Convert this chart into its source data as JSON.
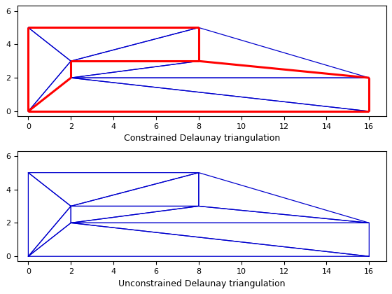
{
  "constrained_triangles": [
    [
      [
        0,
        5
      ],
      [
        2,
        3
      ],
      [
        0,
        0
      ]
    ],
    [
      [
        0,
        5
      ],
      [
        8,
        5
      ],
      [
        2,
        3
      ]
    ],
    [
      [
        2,
        3
      ],
      [
        8,
        5
      ],
      [
        8,
        3
      ]
    ],
    [
      [
        0,
        0
      ],
      [
        2,
        3
      ],
      [
        2,
        2
      ]
    ],
    [
      [
        2,
        2
      ],
      [
        2,
        3
      ],
      [
        8,
        3
      ]
    ],
    [
      [
        2,
        2
      ],
      [
        8,
        3
      ],
      [
        16,
        2
      ]
    ],
    [
      [
        0,
        0
      ],
      [
        2,
        2
      ],
      [
        16,
        0
      ]
    ],
    [
      [
        16,
        0
      ],
      [
        2,
        2
      ],
      [
        16,
        2
      ]
    ],
    [
      [
        8,
        3
      ],
      [
        16,
        2
      ],
      [
        8,
        5
      ]
    ]
  ],
  "unconstrained_triangles": [
    [
      [
        0,
        0
      ],
      [
        0,
        5
      ],
      [
        2,
        3
      ]
    ],
    [
      [
        0,
        0
      ],
      [
        2,
        3
      ],
      [
        2,
        2
      ]
    ],
    [
      [
        0,
        5
      ],
      [
        8,
        5
      ],
      [
        2,
        3
      ]
    ],
    [
      [
        2,
        3
      ],
      [
        8,
        5
      ],
      [
        8,
        3
      ]
    ],
    [
      [
        2,
        2
      ],
      [
        2,
        3
      ],
      [
        8,
        3
      ]
    ],
    [
      [
        0,
        0
      ],
      [
        2,
        2
      ],
      [
        16,
        0
      ]
    ],
    [
      [
        2,
        2
      ],
      [
        8,
        3
      ],
      [
        16,
        2
      ]
    ],
    [
      [
        16,
        0
      ],
      [
        2,
        2
      ],
      [
        16,
        2
      ]
    ],
    [
      [
        8,
        3
      ],
      [
        8,
        5
      ],
      [
        16,
        2
      ]
    ]
  ],
  "red_segments": [
    [
      [
        0,
        0
      ],
      [
        0,
        5
      ]
    ],
    [
      [
        0,
        5
      ],
      [
        8,
        5
      ]
    ],
    [
      [
        8,
        5
      ],
      [
        8,
        3
      ]
    ],
    [
      [
        8,
        3
      ],
      [
        2,
        3
      ]
    ],
    [
      [
        2,
        3
      ],
      [
        2,
        2
      ]
    ],
    [
      [
        2,
        2
      ],
      [
        0,
        0
      ]
    ],
    [
      [
        0,
        0
      ],
      [
        16,
        0
      ]
    ],
    [
      [
        16,
        0
      ],
      [
        16,
        2
      ]
    ],
    [
      [
        16,
        2
      ],
      [
        8,
        3
      ]
    ]
  ],
  "xlabel1": "Constrained Delaunay triangulation",
  "xlabel2": "Unconstrained Delaunay triangulation",
  "xlim": [
    -0.5,
    16.8
  ],
  "ylim": [
    -0.3,
    6.3
  ],
  "xticks": [
    0,
    2,
    4,
    6,
    8,
    10,
    12,
    14,
    16
  ],
  "yticks": [
    0,
    2,
    4,
    6
  ],
  "blue_color": "#0000cd",
  "red_color": "#FF0000",
  "blue_lw": 0.9,
  "red_lw": 2.2,
  "tick_fontsize": 8,
  "xlabel_fontsize": 9
}
